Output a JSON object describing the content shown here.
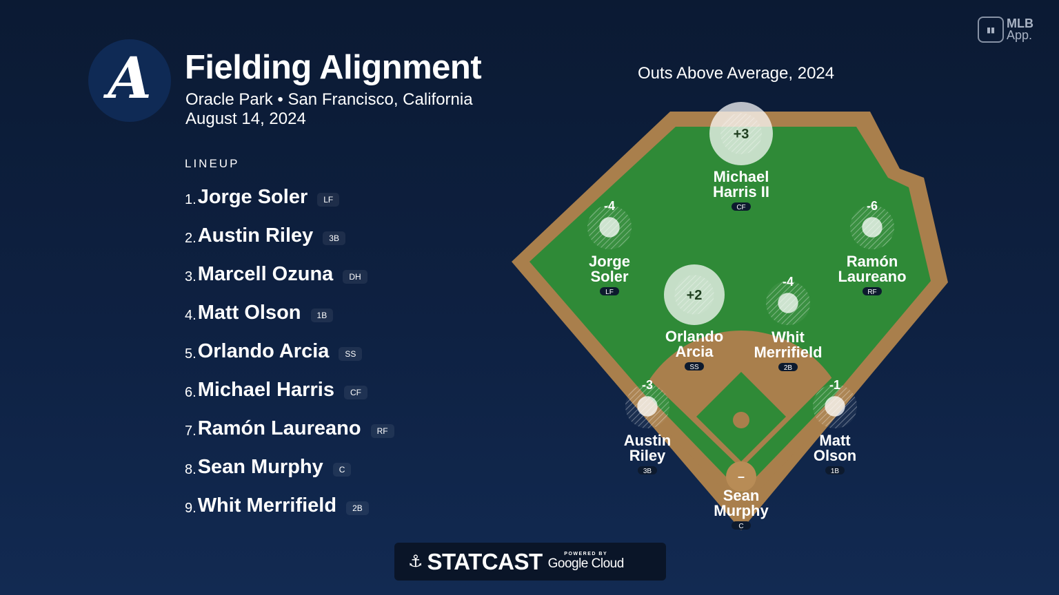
{
  "header": {
    "title": "Fielding Alignment",
    "venue": "Oracle Park • San Francisco, California",
    "date": "August 14, 2024",
    "team_logo_letter": "A"
  },
  "lineup": {
    "label": "LINEUP",
    "items": [
      {
        "num": "1.",
        "name": "Jorge Soler",
        "pos": "LF"
      },
      {
        "num": "2.",
        "name": "Austin Riley",
        "pos": "3B"
      },
      {
        "num": "3.",
        "name": "Marcell Ozuna",
        "pos": "DH"
      },
      {
        "num": "4.",
        "name": "Matt Olson",
        "pos": "1B"
      },
      {
        "num": "5.",
        "name": "Orlando Arcia",
        "pos": "SS"
      },
      {
        "num": "6.",
        "name": "Michael Harris",
        "pos": "CF"
      },
      {
        "num": "7.",
        "name": "Ramón Laureano",
        "pos": "RF"
      },
      {
        "num": "8.",
        "name": "Sean Murphy",
        "pos": "C"
      },
      {
        "num": "9.",
        "name": "Whit Merrifield",
        "pos": "2B"
      }
    ]
  },
  "badge": {
    "line1": "MLB",
    "line2": "App.",
    "icon": "mlb-logo-icon"
  },
  "field": {
    "title": "Outs Above Average, 2024",
    "positions": [
      {
        "key": "cf",
        "line1": "Michael",
        "line2": "Harris II",
        "pos": "CF",
        "oaa": "+3"
      },
      {
        "key": "lf",
        "line1": "Jorge",
        "line2": "Soler",
        "pos": "LF",
        "oaa": "-4"
      },
      {
        "key": "rf",
        "line1": "Ramón",
        "line2": "Laureano",
        "pos": "RF",
        "oaa": "-6"
      },
      {
        "key": "ss",
        "line1": "Orlando",
        "line2": "Arcia",
        "pos": "SS",
        "oaa": "+2"
      },
      {
        "key": "2b",
        "line1": "Whit",
        "line2": "Merrifield",
        "pos": "2B",
        "oaa": "-4"
      },
      {
        "key": "3b",
        "line1": "Austin",
        "line2": "Riley",
        "pos": "3B",
        "oaa": "-3"
      },
      {
        "key": "1b",
        "line1": "Matt",
        "line2": "Olson",
        "pos": "1B",
        "oaa": "-1"
      },
      {
        "key": "c",
        "line1": "Sean",
        "line2": "Murphy",
        "pos": "C",
        "oaa": "–"
      }
    ],
    "colors": {
      "grass": "#2f8a37",
      "dirt": "#a97f4c",
      "wall": "#a97f4c"
    }
  },
  "footer": {
    "brand": "STATCAST",
    "powered_by": "POWERED BY",
    "partner": "Google Cloud"
  }
}
